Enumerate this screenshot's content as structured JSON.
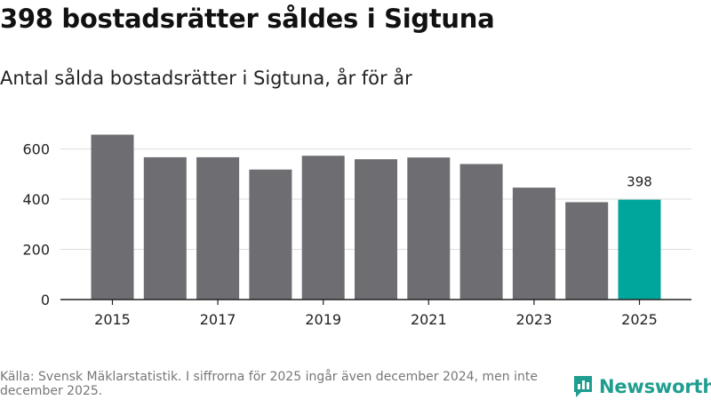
{
  "title": "398 bostadsrätter såldes i Sigtuna",
  "subtitle": "Antal sålda bostadsrätter i Sigtuna, år för år",
  "source": "Källa: Svensk Mäklarstatistik. I siffrorna för 2025 ingår även december 2024, men inte december 2025.",
  "logo": {
    "text": "Newsworthy",
    "icon": "bar-chart-logo-icon"
  },
  "colors": {
    "bar": "#6e6d72",
    "highlight": "#00a69c",
    "grid": "#dddddd",
    "axis": "#222222",
    "brand": "#1f9e90"
  },
  "chart_data": {
    "type": "bar",
    "title": "398 bostadsrätter såldes i Sigtuna",
    "xlabel": "",
    "ylabel": "",
    "categories": [
      "2015",
      "2016",
      "2017",
      "2018",
      "2019",
      "2020",
      "2021",
      "2022",
      "2023",
      "2024",
      "2025"
    ],
    "values": [
      657,
      567,
      567,
      518,
      573,
      559,
      566,
      540,
      446,
      388,
      398
    ],
    "highlight_index": 10,
    "ylim": [
      0,
      680
    ],
    "yticks": [
      0,
      200,
      400,
      600
    ],
    "xtick_labels": [
      "2015",
      "",
      "2017",
      "",
      "2019",
      "",
      "2021",
      "",
      "2023",
      "",
      "2025"
    ],
    "data_labels": [
      {
        "index": 10,
        "text": "398"
      }
    ],
    "grid": true
  }
}
